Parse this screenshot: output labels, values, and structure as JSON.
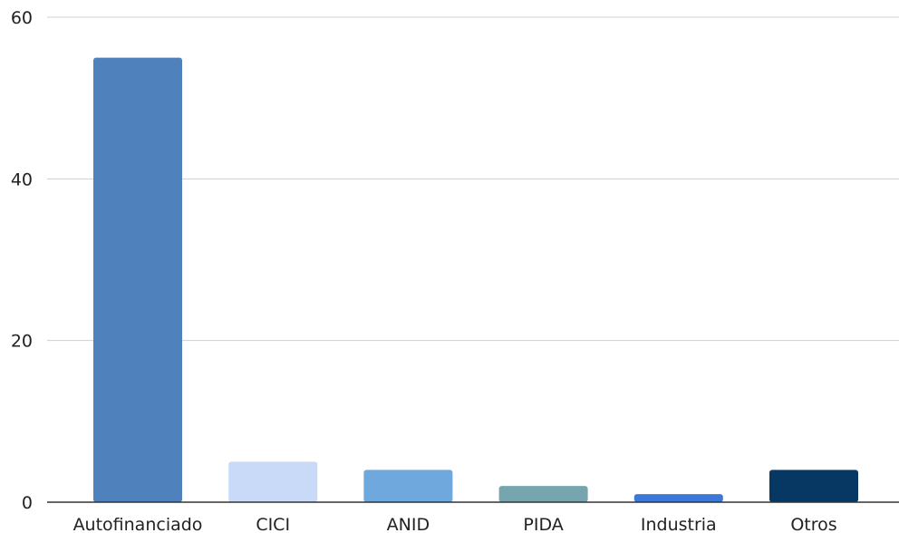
{
  "chart_data": {
    "type": "bar",
    "categories": [
      "Autofinanciado",
      "CICI",
      "ANID",
      "PIDA",
      "Industria",
      "Otros"
    ],
    "values": [
      55,
      5,
      4,
      2,
      1,
      4
    ],
    "colors": [
      "#4f81bd",
      "#c9daf8",
      "#6fa8dc",
      "#76a5af",
      "#3c78d8",
      "#073763"
    ],
    "yticks": [
      0,
      20,
      40,
      60
    ],
    "ylim": [
      0,
      60
    ],
    "grid": true,
    "legend": "none",
    "title": "",
    "xlabel": "",
    "ylabel": ""
  }
}
